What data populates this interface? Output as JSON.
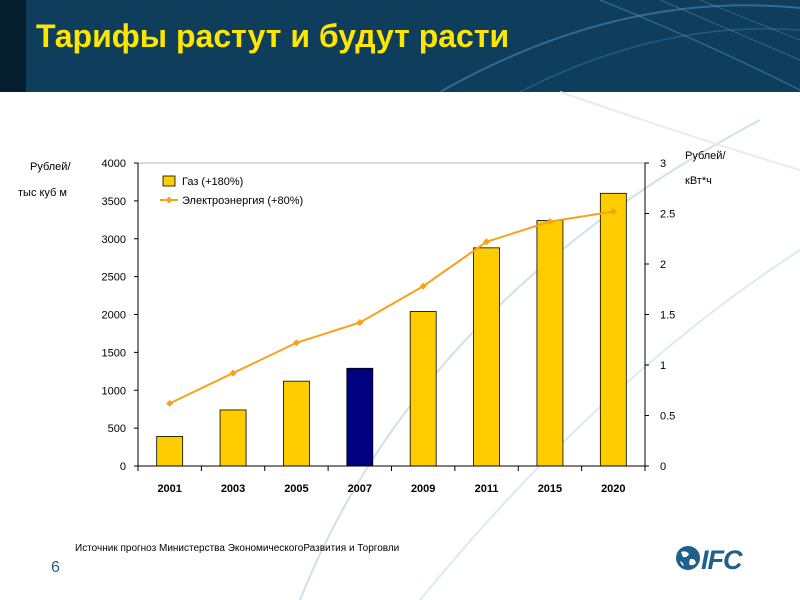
{
  "slide": {
    "title": "Тарифы растут и будут расти",
    "page_number": "6",
    "source": "Источник прогноз Министерства ЭкономическогоРазвития и Торговли",
    "logo_text": "IFC",
    "left_unit_1": "Рублей/",
    "left_unit_2": "тыс куб м",
    "right_unit_1": "Рублей/",
    "right_unit_2": "кВт*ч"
  },
  "colors": {
    "header_bg": "#0E3E5C",
    "title": "#FFE600",
    "bar_gas": "#FFCC00",
    "bar_gas_highlight": "#000080",
    "line_electricity": "#F7A21B",
    "brand": "#1F5F8B"
  },
  "icons": {
    "logo": "ifc-globe-icon"
  },
  "chart_data": {
    "type": "bar",
    "categories": [
      "2001",
      "2003",
      "2005",
      "2007",
      "2009",
      "2011",
      "2015",
      "2020"
    ],
    "highlight_category": "2007",
    "series": [
      {
        "name": "Газ (+180%)",
        "type": "bar",
        "axis": "left",
        "values": [
          390,
          740,
          1120,
          1290,
          2040,
          2880,
          3240,
          3600
        ]
      },
      {
        "name": "Электроэнергия (+80%)",
        "type": "line",
        "axis": "right",
        "values": [
          0.62,
          0.92,
          1.22,
          1.42,
          1.78,
          2.22,
          2.42,
          2.52
        ]
      }
    ],
    "y_left": {
      "ylim": [
        0,
        4000
      ],
      "ticks": [
        "0",
        "500",
        "1000",
        "1500",
        "2000",
        "2500",
        "3000",
        "3500",
        "4000"
      ]
    },
    "y_right": {
      "ylim": [
        0,
        3
      ],
      "ticks": [
        "0",
        "0.5",
        "1",
        "1.5",
        "2",
        "2.5",
        "3"
      ]
    },
    "legend": "top-left",
    "grid": false
  }
}
